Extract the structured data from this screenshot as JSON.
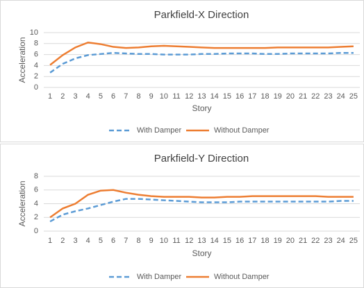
{
  "chart_data": [
    {
      "type": "line",
      "title": "Parkfield-X Direction",
      "x_label": "Story",
      "y_label": "Acceleration",
      "categories": [
        "1",
        "2",
        "3",
        "4",
        "5",
        "6",
        "7",
        "8",
        "9",
        "10",
        "11",
        "12",
        "13",
        "14",
        "15",
        "16",
        "17",
        "18",
        "19",
        "20",
        "21",
        "22",
        "23",
        "24",
        "25"
      ],
      "ylim": [
        0,
        10
      ],
      "yticks": [
        0,
        2,
        4,
        6,
        8,
        10
      ],
      "grid": true,
      "legend": "bottom",
      "series": [
        {
          "name": "With Damper",
          "color": "#5b9bd5",
          "dashed": true,
          "values": [
            2.7,
            4.3,
            5.3,
            5.9,
            6.1,
            6.3,
            6.2,
            6.1,
            6.1,
            6.0,
            6.0,
            6.0,
            6.1,
            6.1,
            6.2,
            6.2,
            6.2,
            6.1,
            6.1,
            6.2,
            6.2,
            6.2,
            6.2,
            6.3,
            6.3
          ]
        },
        {
          "name": "Without Damper",
          "color": "#ed7d31",
          "dashed": false,
          "values": [
            4.1,
            5.9,
            7.3,
            8.2,
            7.9,
            7.4,
            7.2,
            7.3,
            7.5,
            7.6,
            7.5,
            7.4,
            7.3,
            7.2,
            7.2,
            7.2,
            7.2,
            7.2,
            7.3,
            7.3,
            7.3,
            7.3,
            7.3,
            7.4,
            7.5
          ]
        }
      ]
    },
    {
      "type": "line",
      "title": "Parkfield-Y Direction",
      "x_label": "Story",
      "y_label": "Acceleration",
      "categories": [
        "1",
        "2",
        "3",
        "4",
        "5",
        "6",
        "7",
        "8",
        "9",
        "10",
        "11",
        "12",
        "13",
        "14",
        "15",
        "16",
        "17",
        "18",
        "19",
        "20",
        "21",
        "22",
        "23",
        "24",
        "25"
      ],
      "ylim": [
        0,
        8
      ],
      "yticks": [
        0,
        2,
        4,
        6,
        8
      ],
      "grid": true,
      "legend": "bottom",
      "series": [
        {
          "name": "With Damper",
          "color": "#5b9bd5",
          "dashed": true,
          "values": [
            1.4,
            2.4,
            2.9,
            3.3,
            3.8,
            4.3,
            4.7,
            4.7,
            4.6,
            4.5,
            4.4,
            4.3,
            4.2,
            4.2,
            4.2,
            4.3,
            4.3,
            4.3,
            4.3,
            4.3,
            4.3,
            4.3,
            4.3,
            4.4,
            4.4
          ]
        },
        {
          "name": "Without Damper",
          "color": "#ed7d31",
          "dashed": false,
          "values": [
            2.0,
            3.3,
            4.0,
            5.3,
            5.9,
            6.0,
            5.6,
            5.3,
            5.1,
            5.0,
            5.0,
            5.0,
            4.9,
            4.9,
            5.0,
            5.0,
            5.1,
            5.1,
            5.1,
            5.1,
            5.1,
            5.1,
            5.0,
            5.0,
            5.0
          ]
        }
      ]
    }
  ]
}
